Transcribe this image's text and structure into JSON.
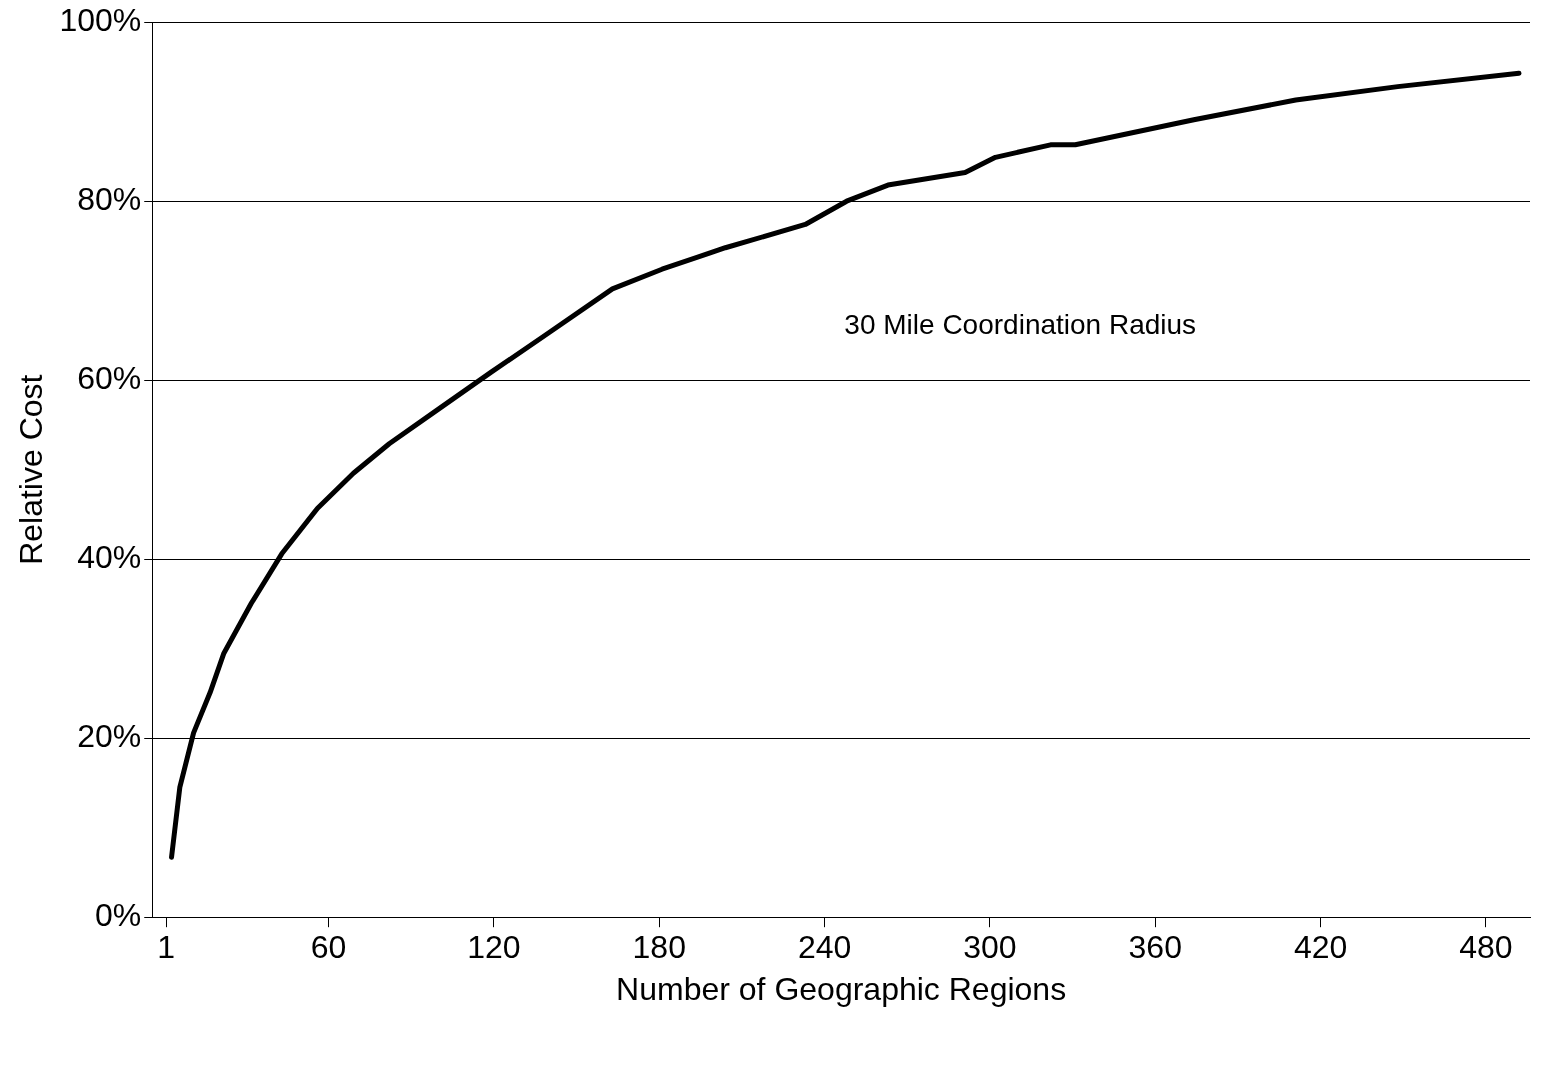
{
  "chart_data": {
    "type": "line",
    "xlabel": "Number of Geographic Regions",
    "ylabel": "Relative Cost",
    "annotations": [
      "30 Mile Coordination Radius"
    ],
    "x": [
      3,
      6,
      11,
      17,
      22,
      32,
      43,
      56,
      69,
      82,
      100,
      119,
      139,
      163,
      181,
      204,
      233,
      248,
      263,
      291,
      302,
      322,
      331,
      374,
      411,
      448,
      492
    ],
    "series": [
      {
        "color": "#000000",
        "values": [
          6.7,
          14.5,
          20.6,
          25.1,
          29.5,
          35.1,
          40.6,
          45.7,
          49.6,
          52.9,
          56.8,
          60.9,
          65.1,
          70.2,
          72.4,
          74.8,
          77.4,
          80,
          81.8,
          83.2,
          84.9,
          86.3,
          86.3,
          89.1,
          91.3,
          92.8,
          94.3
        ]
      }
    ],
    "xlim": [
      -4,
      496
    ],
    "xticks": [
      1,
      60,
      120,
      180,
      240,
      300,
      360,
      420,
      480
    ],
    "ylim": [
      0,
      100
    ],
    "yticks": [
      {
        "value": 0,
        "label": "0%"
      },
      {
        "value": 20,
        "label": "20%"
      },
      {
        "value": 40,
        "label": "40%"
      },
      {
        "value": 60,
        "label": "60%"
      },
      {
        "value": 80,
        "label": "80%"
      },
      {
        "value": 100,
        "label": "100%"
      }
    ],
    "grid": "y",
    "legend": false,
    "marker": "none",
    "line_style": "solid"
  }
}
